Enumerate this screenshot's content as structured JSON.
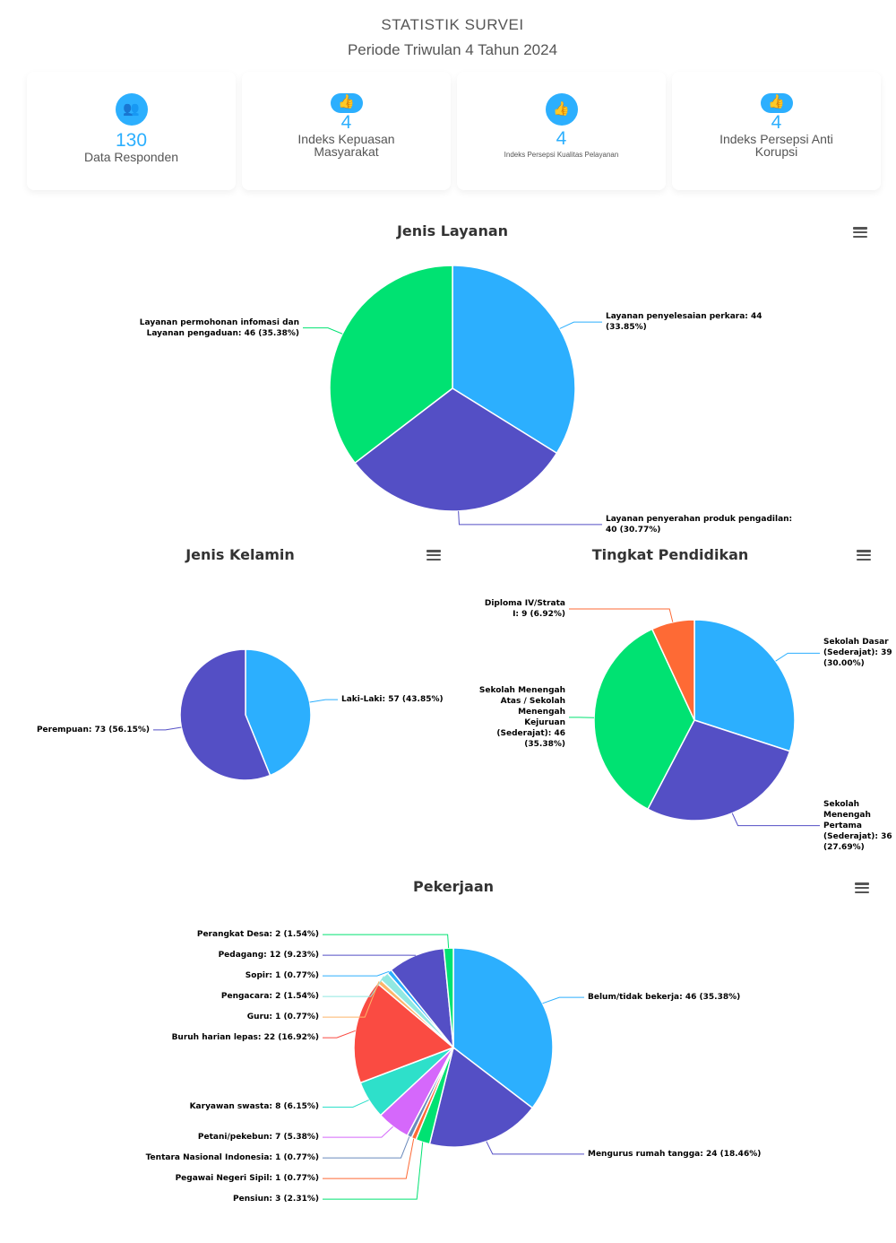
{
  "header": {
    "title": "STATISTIK SURVEI",
    "subtitle": "Periode Triwulan 4 Tahun 2024"
  },
  "cards": [
    {
      "icon": "users-icon",
      "value": "130",
      "label": "Data Responden"
    },
    {
      "icon": "thumbs-up-icon",
      "value": "4",
      "label": "Indeks Kepuasan Masyarakat"
    },
    {
      "icon": "thumbs-up-icon",
      "value": "4",
      "label": "Indeks Persepsi Kualitas Pelayanan"
    },
    {
      "icon": "thumbs-up-icon",
      "value": "4",
      "label": "Indeks Persepsi Anti Korupsi"
    }
  ],
  "palette": [
    "#2caffe",
    "#544fc5",
    "#00e272",
    "#fe6a35",
    "#6b8abc",
    "#d568fb",
    "#2ee0ca",
    "#fa4b42",
    "#feb56a",
    "#91e8e1"
  ],
  "chart_data": [
    {
      "type": "pie",
      "title": "Jenis Layanan",
      "menu_icon": "hamburger-menu-icon",
      "slices": [
        {
          "name": "Layanan penyelesaian perkara",
          "value": 44,
          "percent": "33.85%"
        },
        {
          "name": "Layanan penyerahan produk pengadilan",
          "value": 40,
          "percent": "30.77%"
        },
        {
          "name": "Layanan permohonan infomasi dan Layanan pengaduan",
          "value": 46,
          "percent": "35.38%"
        }
      ]
    },
    {
      "type": "pie",
      "title": "Jenis Kelamin",
      "menu_icon": "hamburger-menu-icon",
      "slices": [
        {
          "name": "Laki-Laki",
          "value": 57,
          "percent": "43.85%"
        },
        {
          "name": "Perempuan",
          "value": 73,
          "percent": "56.15%"
        }
      ]
    },
    {
      "type": "pie",
      "title": "Tingkat Pendidikan",
      "menu_icon": "hamburger-menu-icon",
      "slices": [
        {
          "name": "Sekolah Dasar (Sederajat)",
          "value": 39,
          "percent": "30.00%"
        },
        {
          "name": "Sekolah Menengah Pertama (Sederajat)",
          "value": 36,
          "percent": "27.69%"
        },
        {
          "name": "Sekolah Menengah Atas / Sekolah Menengah Kejuruan (Sederajat)",
          "value": 46,
          "percent": "35.38%"
        },
        {
          "name": "Diploma IV/Strata I",
          "value": 9,
          "percent": "6.92%"
        }
      ]
    },
    {
      "type": "pie",
      "title": "Pekerjaan",
      "menu_icon": "hamburger-menu-icon",
      "slices": [
        {
          "name": "Belum/tidak bekerja",
          "value": 46,
          "percent": "35.38%"
        },
        {
          "name": "Mengurus rumah tangga",
          "value": 24,
          "percent": "18.46%"
        },
        {
          "name": "Pensiun",
          "value": 3,
          "percent": "2.31%"
        },
        {
          "name": "Pegawai Negeri Sipil",
          "value": 1,
          "percent": "0.77%"
        },
        {
          "name": "Tentara Nasional Indonesia",
          "value": 1,
          "percent": "0.77%"
        },
        {
          "name": "Petani/pekebun",
          "value": 7,
          "percent": "5.38%"
        },
        {
          "name": "Karyawan swasta",
          "value": 8,
          "percent": "6.15%"
        },
        {
          "name": "Buruh harian lepas",
          "value": 22,
          "percent": "16.92%"
        },
        {
          "name": "Guru",
          "value": 1,
          "percent": "0.77%"
        },
        {
          "name": "Pengacara",
          "value": 2,
          "percent": "1.54%"
        },
        {
          "name": "Sopir",
          "value": 1,
          "percent": "0.77%"
        },
        {
          "name": "Pedagang",
          "value": 12,
          "percent": "9.23%"
        },
        {
          "name": "Perangkat Desa",
          "value": 2,
          "percent": "1.54%"
        }
      ]
    }
  ]
}
